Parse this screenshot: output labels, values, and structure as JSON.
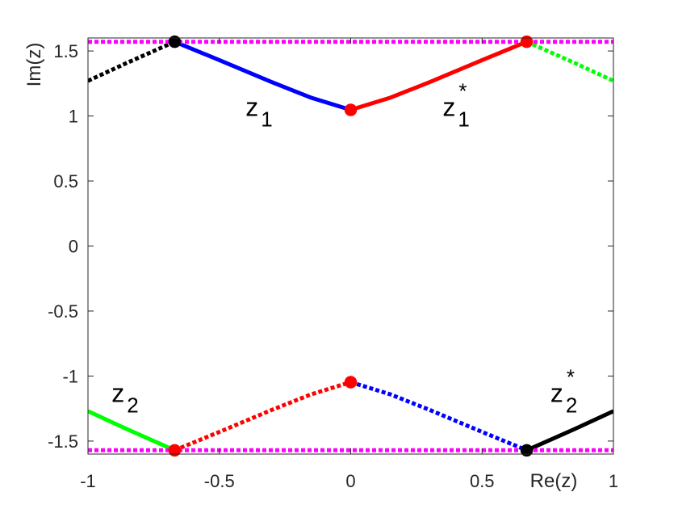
{
  "chart_data": {
    "type": "line",
    "title": "",
    "xlabel": "Re(z)",
    "ylabel": "Im(z)",
    "xlim": [
      -1,
      1
    ],
    "ylim": [
      -1.6,
      1.6
    ],
    "xticks": [
      -1,
      -0.5,
      0,
      0.5,
      1
    ],
    "xtick_labels": [
      "-1",
      "-0.5",
      "0",
      "0.5",
      "1"
    ],
    "yticks": [
      -1.5,
      -1,
      -0.5,
      0,
      0.5,
      1,
      1.5
    ],
    "ytick_labels": [
      "-1.5",
      "-1",
      "-0.5",
      "0",
      "0.5",
      "1",
      "1.5"
    ],
    "grid": false,
    "legend": "none",
    "series": [
      {
        "color": "#0000ff",
        "style": "solid",
        "x": [
          -0.67,
          -0.5,
          -0.3,
          -0.15,
          0
        ],
        "y": [
          1.571,
          1.43,
          1.26,
          1.14,
          1.047
        ]
      },
      {
        "color": "#ff0000",
        "style": "solid",
        "x": [
          0,
          0.15,
          0.3,
          0.5,
          0.67
        ],
        "y": [
          1.047,
          1.14,
          1.26,
          1.43,
          1.571
        ]
      },
      {
        "color": "#000000",
        "style": "dotted",
        "x": [
          -1,
          -0.85,
          -0.67
        ],
        "y": [
          1.27,
          1.41,
          1.571
        ]
      },
      {
        "color": "#00ff00",
        "style": "dotted",
        "x": [
          0.67,
          0.85,
          1
        ],
        "y": [
          1.571,
          1.41,
          1.27
        ]
      },
      {
        "color": "#00ff00",
        "style": "solid",
        "x": [
          -1,
          -0.85,
          -0.67
        ],
        "y": [
          -1.27,
          -1.41,
          -1.571
        ]
      },
      {
        "color": "#ff0000",
        "style": "dotted",
        "x": [
          -0.67,
          -0.5,
          -0.3,
          -0.15,
          0
        ],
        "y": [
          -1.571,
          -1.43,
          -1.26,
          -1.14,
          -1.047
        ]
      },
      {
        "color": "#0000ff",
        "style": "dotted",
        "x": [
          0,
          0.15,
          0.3,
          0.5,
          0.67
        ],
        "y": [
          -1.047,
          -1.14,
          -1.26,
          -1.43,
          -1.571
        ]
      },
      {
        "color": "#000000",
        "style": "solid",
        "x": [
          0.67,
          0.85,
          1
        ],
        "y": [
          -1.571,
          -1.41,
          -1.27
        ]
      },
      {
        "color": "#ff00ff",
        "style": "dotted",
        "x": [
          -1,
          1
        ],
        "y": [
          1.571,
          1.571
        ]
      },
      {
        "color": "#ff00ff",
        "style": "dotted",
        "x": [
          -1,
          1
        ],
        "y": [
          -1.571,
          -1.571
        ]
      }
    ],
    "markers": [
      {
        "x": 0,
        "y": 1.047,
        "fill": "#ff0000",
        "edge": "#ff0000"
      },
      {
        "x": 0,
        "y": -1.047,
        "fill": "#ff0000",
        "edge": "#ff0000"
      },
      {
        "x": -0.67,
        "y": 1.571,
        "fill": "#000000",
        "edge": "#000000"
      },
      {
        "x": 0.67,
        "y": 1.571,
        "fill": "#ff0000",
        "edge": "#ff0000"
      },
      {
        "x": -0.67,
        "y": -1.571,
        "fill": "#ff0000",
        "edge": "#ff0000"
      },
      {
        "x": 0.67,
        "y": -1.571,
        "fill": "#000000",
        "edge": "#000000"
      }
    ],
    "annotations": [
      {
        "base": "z",
        "sub": "1",
        "sup": "",
        "x": -0.4,
        "y": 1.0
      },
      {
        "base": "z",
        "sub": "1",
        "sup": "*",
        "x": 0.35,
        "y": 1.0
      },
      {
        "base": "z",
        "sub": "2",
        "sup": "",
        "x": -0.91,
        "y": -1.2
      },
      {
        "base": "z",
        "sub": "2",
        "sup": "*",
        "x": 0.76,
        "y": -1.2
      }
    ]
  }
}
